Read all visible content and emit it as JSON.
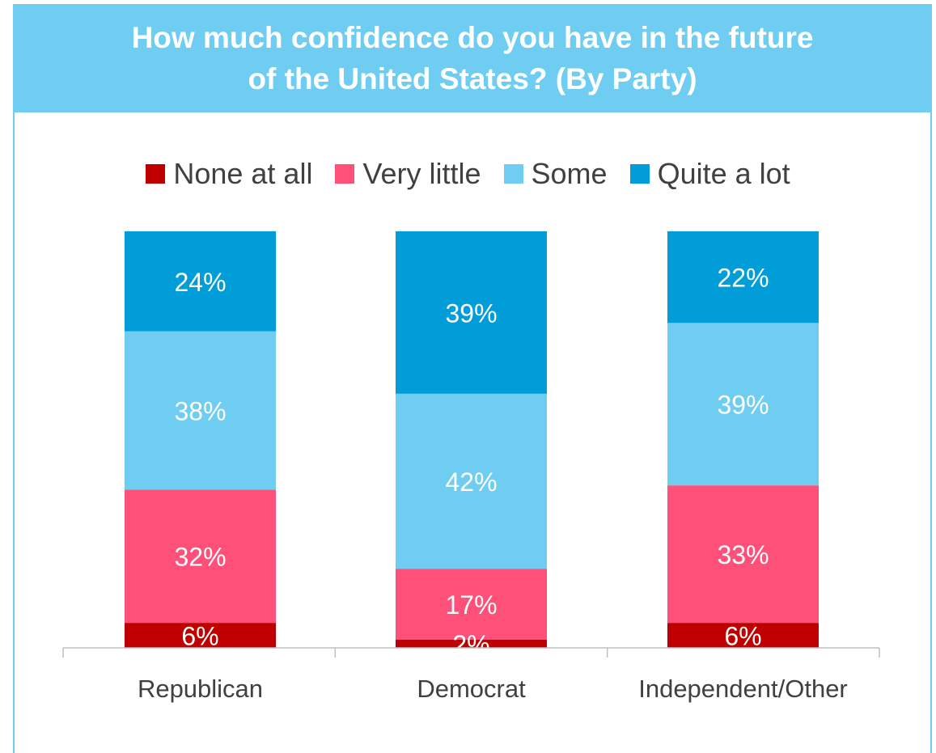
{
  "chart_data": {
    "type": "bar",
    "stacked": true,
    "title": "How much confidence do you have in the future of the United States? (By Party)",
    "categories": [
      "Republican",
      "Democrat",
      "Independent/Other"
    ],
    "series": [
      {
        "name": "None at all",
        "values": [
          6,
          2,
          6
        ],
        "color": "#c00000"
      },
      {
        "name": "Very little",
        "values": [
          32,
          17,
          33
        ],
        "color": "#ff5079"
      },
      {
        "name": "Some",
        "values": [
          38,
          42,
          39
        ],
        "color": "#6fcdf2"
      },
      {
        "name": "Quite a lot",
        "values": [
          24,
          39,
          22
        ],
        "color": "#009dd8"
      }
    ],
    "value_suffix": "%",
    "legend_position": "top",
    "grid": false,
    "xlabel": "",
    "ylabel": ""
  },
  "colors": {
    "header_bg": "#6fcdf2",
    "title_text": "#ffffff",
    "label_text": "#404040",
    "axis": "#bfbfbf"
  }
}
